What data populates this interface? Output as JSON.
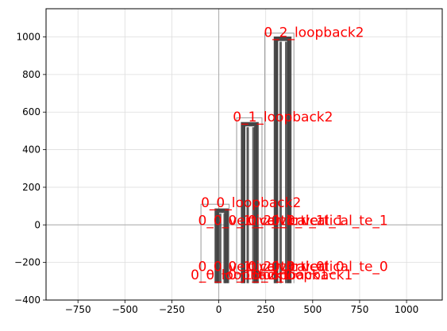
{
  "chart_data": {
    "type": "scatter",
    "title": "",
    "xlabel": "",
    "ylabel": "",
    "xlim": [
      -920,
      1190
    ],
    "ylim": [
      -400,
      1150
    ],
    "xticks": [
      -750,
      -500,
      -250,
      0,
      250,
      500,
      750,
      1000
    ],
    "yticks": [
      -400,
      -200,
      0,
      200,
      400,
      600,
      800,
      1000
    ],
    "xtick_labels": [
      "−750",
      "−500",
      "−250",
      "0",
      "250",
      "500",
      "750",
      "1000"
    ],
    "ytick_labels": [
      "−400",
      "−200",
      "0",
      "200",
      "400",
      "600",
      "800",
      "1000"
    ],
    "grid": true,
    "colors": {
      "label": "#ff0000",
      "path": "#444444",
      "outline": "#999999",
      "axis_zero": "#aaaaaa",
      "grid": "#dddddd"
    },
    "structures": [
      {
        "name": "0_0_loopback2",
        "x_left": -20,
        "x_right": 50,
        "y_top": 85,
        "y_bottom": -310
      },
      {
        "name": "0_1_loopback2",
        "x_left": 120,
        "x_right": 210,
        "y_top": 545,
        "y_bottom": -310
      },
      {
        "name": "0_2_loopback2",
        "x_left": 295,
        "x_right": 385,
        "y_top": 1000,
        "y_bottom": -310
      }
    ],
    "outlines": [
      {
        "x": [
          -95,
          -95,
          55,
          55
        ],
        "y": [
          -310,
          110,
          110,
          -310
        ]
      },
      {
        "x": [
          95,
          95,
          230,
          230
        ],
        "y": [
          -310,
          570,
          570,
          -310
        ]
      },
      {
        "x": [
          245,
          245,
          400,
          400
        ],
        "y": [
          -310,
          1020,
          1020,
          -310
        ]
      }
    ],
    "annotations": [
      {
        "text": "0_2_loopback2",
        "x": 240,
        "y": 1000
      },
      {
        "text": "0_1_loopback2",
        "x": 75,
        "y": 550
      },
      {
        "text": "0_0_loopback2",
        "x": -95,
        "y": 95
      },
      {
        "text": "0_0_vertical_1",
        "x": -110,
        "y": 0
      },
      {
        "text": "0_1_vertical_1",
        "x": 50,
        "y": 0
      },
      {
        "text": "0_2_vertical_1",
        "x": 155,
        "y": 0
      },
      {
        "text": "0_0_vertical_te_1",
        "x": 280,
        "y": 0
      },
      {
        "text": "0_0_vertical_0",
        "x": -110,
        "y": -245
      },
      {
        "text": "0_1_vertical_0",
        "x": 50,
        "y": -245
      },
      {
        "text": "0_2_vertical_0",
        "x": 155,
        "y": -245
      },
      {
        "text": "0_0_vertical_te_0",
        "x": 280,
        "y": -245
      },
      {
        "text": "0_0_loopback1",
        "x": -150,
        "y": -290
      },
      {
        "text": "0_1_loopback1",
        "x": 50,
        "y": -290
      },
      {
        "text": "0_2_loopback1",
        "x": 180,
        "y": -290
      }
    ]
  }
}
